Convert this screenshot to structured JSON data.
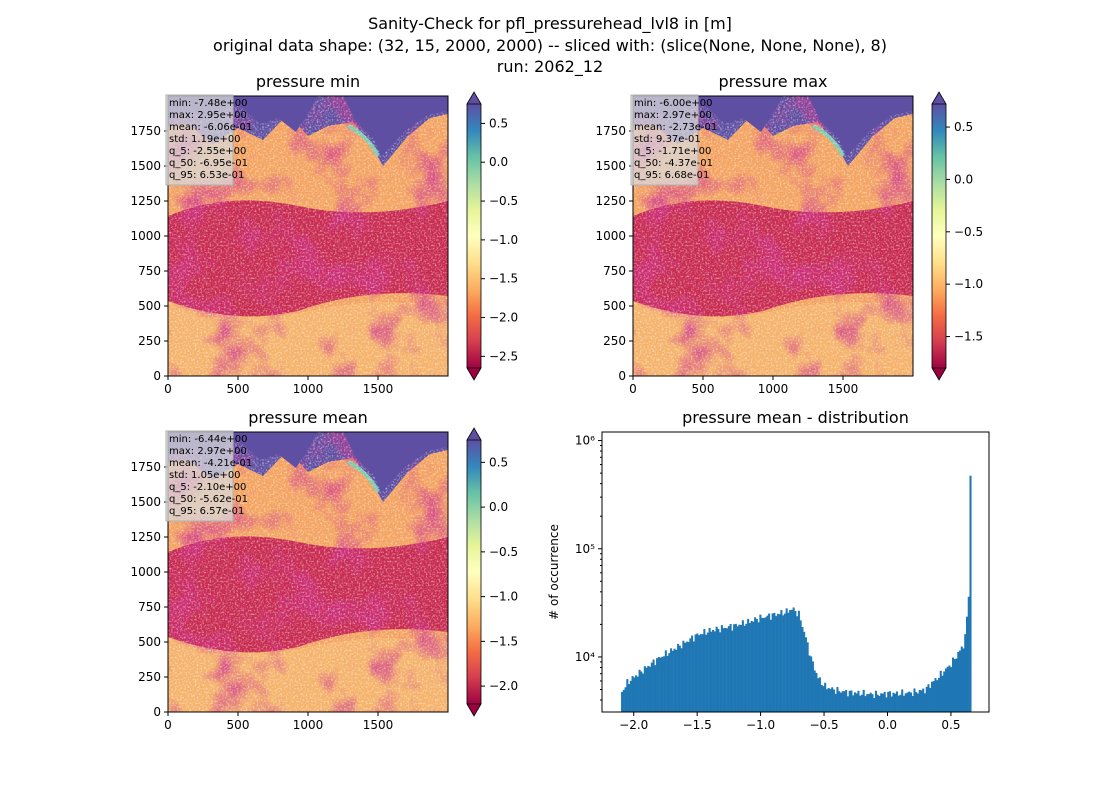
{
  "suptitle": [
    "Sanity-Check for pfl_pressurehead_lvl8 in [m]",
    "original data shape: (32, 15, 2000, 2000) -- sliced with: (slice(None, None, None), 8)",
    "run: 2062_12"
  ],
  "colors": {
    "sea": "#5e4fa2",
    "hist_bar": "#1f77b4",
    "cmap": "Spectral"
  },
  "chart_data": [
    {
      "type": "heatmap",
      "title": "pressure min",
      "xlim": [
        0,
        2000
      ],
      "ylim": [
        0,
        2000
      ],
      "xticks": [
        "0",
        "500",
        "1000",
        "1500"
      ],
      "yticks": [
        "0",
        "250",
        "500",
        "750",
        "1000",
        "1250",
        "1500",
        "1750"
      ],
      "colorbar": {
        "range": [
          -2.65,
          0.75
        ],
        "ticks": [
          "0.5",
          "0.0",
          "−0.5",
          "−1.0",
          "−1.5",
          "−2.0",
          "−2.5"
        ],
        "tick_values": [
          0.5,
          0.0,
          -0.5,
          -1.0,
          -1.5,
          -2.0,
          -2.5
        ],
        "extend": "both"
      },
      "stats": [
        "min: -7.48e+00",
        "max: 2.95e+00",
        "mean: -6.06e-01",
        "std: 1.19e+00",
        "q_5: -2.55e+00",
        "q_50: -6.95e-01",
        "q_95: 6.53e-01"
      ]
    },
    {
      "type": "heatmap",
      "title": "pressure max",
      "xlim": [
        0,
        2000
      ],
      "ylim": [
        0,
        2000
      ],
      "xticks": [
        "0",
        "500",
        "1000",
        "1500"
      ],
      "yticks": [
        "0",
        "250",
        "500",
        "750",
        "1000",
        "1250",
        "1500",
        "1750"
      ],
      "colorbar": {
        "range": [
          -1.8,
          0.72
        ],
        "ticks": [
          "0.5",
          "0.0",
          "−0.5",
          "−1.0",
          "−1.5"
        ],
        "tick_values": [
          0.5,
          0.0,
          -0.5,
          -1.0,
          -1.5
        ],
        "extend": "both"
      },
      "stats": [
        "min: -6.00e+00",
        "max: 2.97e+00",
        "mean: -2.73e-01",
        "std: 9.37e-01",
        "q_5: -1.71e+00",
        "q_50: -4.37e-01",
        "q_95: 6.68e-01"
      ]
    },
    {
      "type": "heatmap",
      "title": "pressure mean",
      "xlim": [
        0,
        2000
      ],
      "ylim": [
        0,
        2000
      ],
      "xticks": [
        "0",
        "500",
        "1000",
        "1500"
      ],
      "yticks": [
        "0",
        "250",
        "500",
        "750",
        "1000",
        "1250",
        "1500",
        "1750"
      ],
      "colorbar": {
        "range": [
          -2.2,
          0.75
        ],
        "ticks": [
          "0.5",
          "0.0",
          "−0.5",
          "−1.0",
          "−1.5",
          "−2.0"
        ],
        "tick_values": [
          0.5,
          0.0,
          -0.5,
          -1.0,
          -1.5,
          -2.0
        ],
        "extend": "both"
      },
      "stats": [
        "min: -6.44e+00",
        "max: 2.97e+00",
        "mean: -4.21e-01",
        "std: 1.05e+00",
        "q_5: -2.10e+00",
        "q_50: -5.62e-01",
        "q_95: 6.57e-01"
      ]
    },
    {
      "type": "bar",
      "title": "pressure mean - distribution",
      "ylabel": "# of occurrence",
      "xlabel": "",
      "yscale": "log",
      "xlim": [
        -2.25,
        0.8
      ],
      "ylim": [
        3100,
        1200000
      ],
      "xticks": [
        "−2.0",
        "−1.5",
        "−1.0",
        "−0.5",
        "0.0",
        "0.5"
      ],
      "xtick_values": [
        -2.0,
        -1.5,
        -1.0,
        -0.5,
        0.0,
        0.5
      ],
      "yticks": [
        "10⁴",
        "10⁵",
        "10⁶"
      ],
      "ytick_values": [
        10000,
        100000,
        1000000
      ],
      "profile_x": [
        -2.1,
        -2.05,
        -2.0,
        -1.9,
        -1.8,
        -1.7,
        -1.6,
        -1.5,
        -1.4,
        -1.3,
        -1.2,
        -1.1,
        -1.0,
        -0.9,
        -0.8,
        -0.75,
        -0.7,
        -0.65,
        -0.6,
        -0.55,
        -0.5,
        -0.45,
        -0.4,
        -0.3,
        -0.2,
        -0.1,
        0.0,
        0.1,
        0.2,
        0.3,
        0.35,
        0.4,
        0.45,
        0.5,
        0.55,
        0.6,
        0.62,
        0.64,
        0.65,
        0.655
      ],
      "profile_y": [
        4600,
        5800,
        6500,
        8000,
        9800,
        11500,
        13500,
        16000,
        17500,
        18500,
        19500,
        21000,
        23000,
        24500,
        26000,
        28000,
        25000,
        16000,
        9500,
        6500,
        5400,
        5100,
        4900,
        4700,
        4600,
        4500,
        4600,
        4600,
        4700,
        5000,
        5800,
        6500,
        7500,
        8600,
        10500,
        13000,
        18000,
        40000,
        800000,
        330000
      ]
    }
  ]
}
